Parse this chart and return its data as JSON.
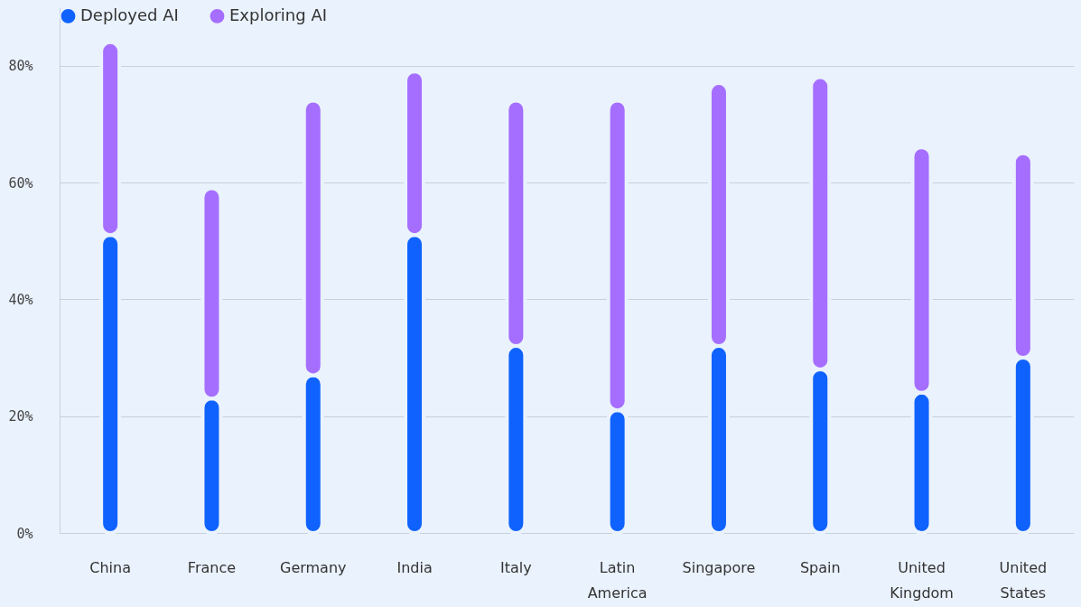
{
  "chart_data": {
    "type": "bar",
    "stacked": true,
    "categories": [
      "China",
      "France",
      "Germany",
      "India",
      "Italy",
      "Latin America",
      "Singapore",
      "Spain",
      "United Kingdom",
      "United States"
    ],
    "series": [
      {
        "name": "Deployed AI",
        "color": "#0f62fe",
        "values": [
          51,
          23,
          27,
          51,
          32,
          21,
          32,
          28,
          24,
          30
        ]
      },
      {
        "name": "Exploring AI",
        "color": "#a56eff",
        "values": [
          33,
          36,
          47,
          28,
          42,
          53,
          45,
          50,
          42,
          35
        ]
      }
    ],
    "ylim": [
      0,
      90
    ],
    "yticks": [
      {
        "value": 0,
        "label": "0%"
      },
      {
        "value": 20,
        "label": "20%"
      },
      {
        "value": 40,
        "label": "40%"
      },
      {
        "value": 60,
        "label": "60%"
      },
      {
        "value": 80,
        "label": "80%"
      }
    ],
    "grid": "y",
    "legend": "top left"
  }
}
